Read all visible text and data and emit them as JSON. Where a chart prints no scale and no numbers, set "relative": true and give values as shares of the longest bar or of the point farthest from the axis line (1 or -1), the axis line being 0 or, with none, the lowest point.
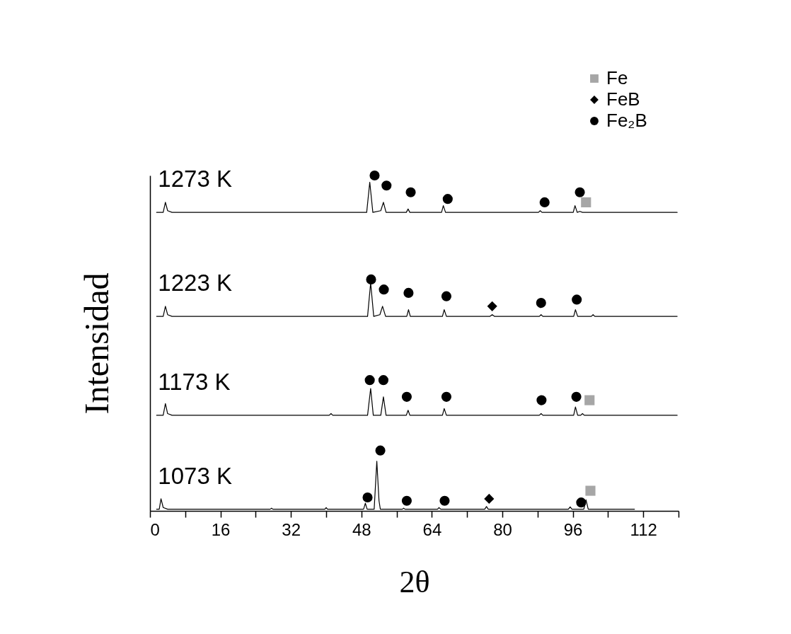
{
  "chart_data": {
    "type": "line",
    "relative": true,
    "xlabel": "2θ",
    "ylabel": "Intensidad",
    "xlim": [
      0,
      120
    ],
    "xticks": [
      0,
      {
        "value": 8,
        "label": null
      },
      16,
      {
        "value": 24,
        "label": null
      },
      32,
      {
        "value": 40,
        "label": null
      },
      48,
      {
        "value": 56,
        "label": null
      },
      64,
      {
        "value": 72,
        "label": null
      },
      80,
      {
        "value": 88,
        "label": null
      },
      96,
      {
        "value": 104,
        "label": null
      },
      112,
      {
        "value": 120,
        "label": null
      }
    ],
    "legend": "top right",
    "series": [
      {
        "name": "1273 K",
        "color": "#000000",
        "x": [
          1.5,
          3.0,
          3.5,
          4.0,
          5.0,
          49.2,
          49.9,
          50.6,
          52.4,
          53.0,
          53.6,
          58.2,
          58.6,
          59.0,
          66.2,
          66.6,
          67.1,
          88.2,
          88.6,
          89.0,
          96.1,
          96.5,
          97.0,
          97.6,
          98.2,
          110,
          119.7
        ],
        "values": [
          0.89,
          0.89,
          0.92,
          0.895,
          0.89,
          0.89,
          0.98,
          0.89,
          0.895,
          0.92,
          0.89,
          0.89,
          0.9,
          0.89,
          0.89,
          0.91,
          0.89,
          0.89,
          0.895,
          0.89,
          0.89,
          0.91,
          0.89,
          0.893,
          0.89,
          0.89,
          0.89
        ]
      },
      {
        "name": "1223 K",
        "color": "#000000",
        "x": [
          1.5,
          3.0,
          3.5,
          4.0,
          5.0,
          49.4,
          50.1,
          50.8,
          52.2,
          52.8,
          53.5,
          58.3,
          58.7,
          59.1,
          66.4,
          66.8,
          67.3,
          77.2,
          77.7,
          78.2,
          88.4,
          88.8,
          89.2,
          96.2,
          96.6,
          97.1,
          100.2,
          100.6,
          101.0,
          119.7
        ],
        "values": [
          0.58,
          0.58,
          0.61,
          0.585,
          0.58,
          0.58,
          0.68,
          0.58,
          0.585,
          0.61,
          0.58,
          0.58,
          0.6,
          0.58,
          0.58,
          0.6,
          0.58,
          0.58,
          0.585,
          0.58,
          0.58,
          0.585,
          0.58,
          0.58,
          0.6,
          0.58,
          0.58,
          0.585,
          0.58,
          0.58
        ]
      },
      {
        "name": "1173 K",
        "color": "#000000",
        "x": [
          1.5,
          3.0,
          3.5,
          4.0,
          5.0,
          40.7,
          41.1,
          41.5,
          49.4,
          50.1,
          50.7,
          52.4,
          53.0,
          53.6,
          58.2,
          58.6,
          59.0,
          66.4,
          66.8,
          67.3,
          88.4,
          88.8,
          89.2,
          96.2,
          96.6,
          97.1,
          97.8,
          98.2,
          98.6,
          110,
          119.7
        ],
        "values": [
          0.285,
          0.285,
          0.32,
          0.29,
          0.285,
          0.285,
          0.29,
          0.285,
          0.285,
          0.365,
          0.285,
          0.285,
          0.34,
          0.285,
          0.285,
          0.3,
          0.285,
          0.285,
          0.305,
          0.285,
          0.285,
          0.29,
          0.285,
          0.285,
          0.31,
          0.285,
          0.285,
          0.29,
          0.285,
          0.285,
          0.285
        ]
      },
      {
        "name": "1073 K",
        "color": "#000000",
        "x": [
          1.5,
          2.1,
          2.5,
          3.0,
          4.0,
          27.3,
          27.6,
          27.9,
          39.7,
          40.0,
          40.3,
          48.5,
          48.9,
          49.3,
          50.9,
          51.5,
          52.0,
          52.3,
          57.3,
          57.6,
          57.9,
          65.3,
          65.6,
          66.0,
          76.0,
          76.4,
          76.8,
          95.0,
          95.4,
          95.8,
          98.5,
          99.0,
          99.5,
          110
        ],
        "values": [
          0.005,
          0.005,
          0.036,
          0.01,
          0.005,
          0.005,
          0.008,
          0.005,
          0.005,
          0.01,
          0.005,
          0.005,
          0.023,
          0.005,
          0.005,
          0.148,
          0.03,
          0.005,
          0.005,
          0.008,
          0.005,
          0.005,
          0.01,
          0.005,
          0.005,
          0.013,
          0.005,
          0.005,
          0.012,
          0.005,
          0.005,
          0.033,
          0.005,
          0.005
        ]
      },
      {
        "type": "scatter",
        "name": "Fe",
        "color": "#a6a6a6",
        "marker": "square",
        "x": [
          99.0,
          99.8,
          100.0
        ],
        "values": [
          0.92,
          0.33,
          0.06
        ]
      },
      {
        "type": "scatter",
        "name": "FeB",
        "color": "#000000",
        "marker": "diamond",
        "x": [
          77.7,
          77.0
        ],
        "values": [
          0.61,
          0.036
        ]
      },
      {
        "type": "scatter",
        "name": "Fe₂B",
        "color": "#000000",
        "marker": "circle",
        "x": [
          51.0,
          53.7,
          59.2,
          67.6,
          89.6,
          97.6,
          50.2,
          53.1,
          58.7,
          67.3,
          88.8,
          96.9,
          49.9,
          53.0,
          58.3,
          67.3,
          88.9,
          96.8,
          52.3,
          49.4,
          58.3,
          66.9,
          97.9
        ],
        "values": [
          1.0,
          0.97,
          0.95,
          0.93,
          0.92,
          0.95,
          0.69,
          0.66,
          0.65,
          0.64,
          0.62,
          0.63,
          0.39,
          0.39,
          0.34,
          0.34,
          0.33,
          0.34,
          0.18,
          0.04,
          0.03,
          0.03,
          0.025
        ]
      }
    ]
  }
}
